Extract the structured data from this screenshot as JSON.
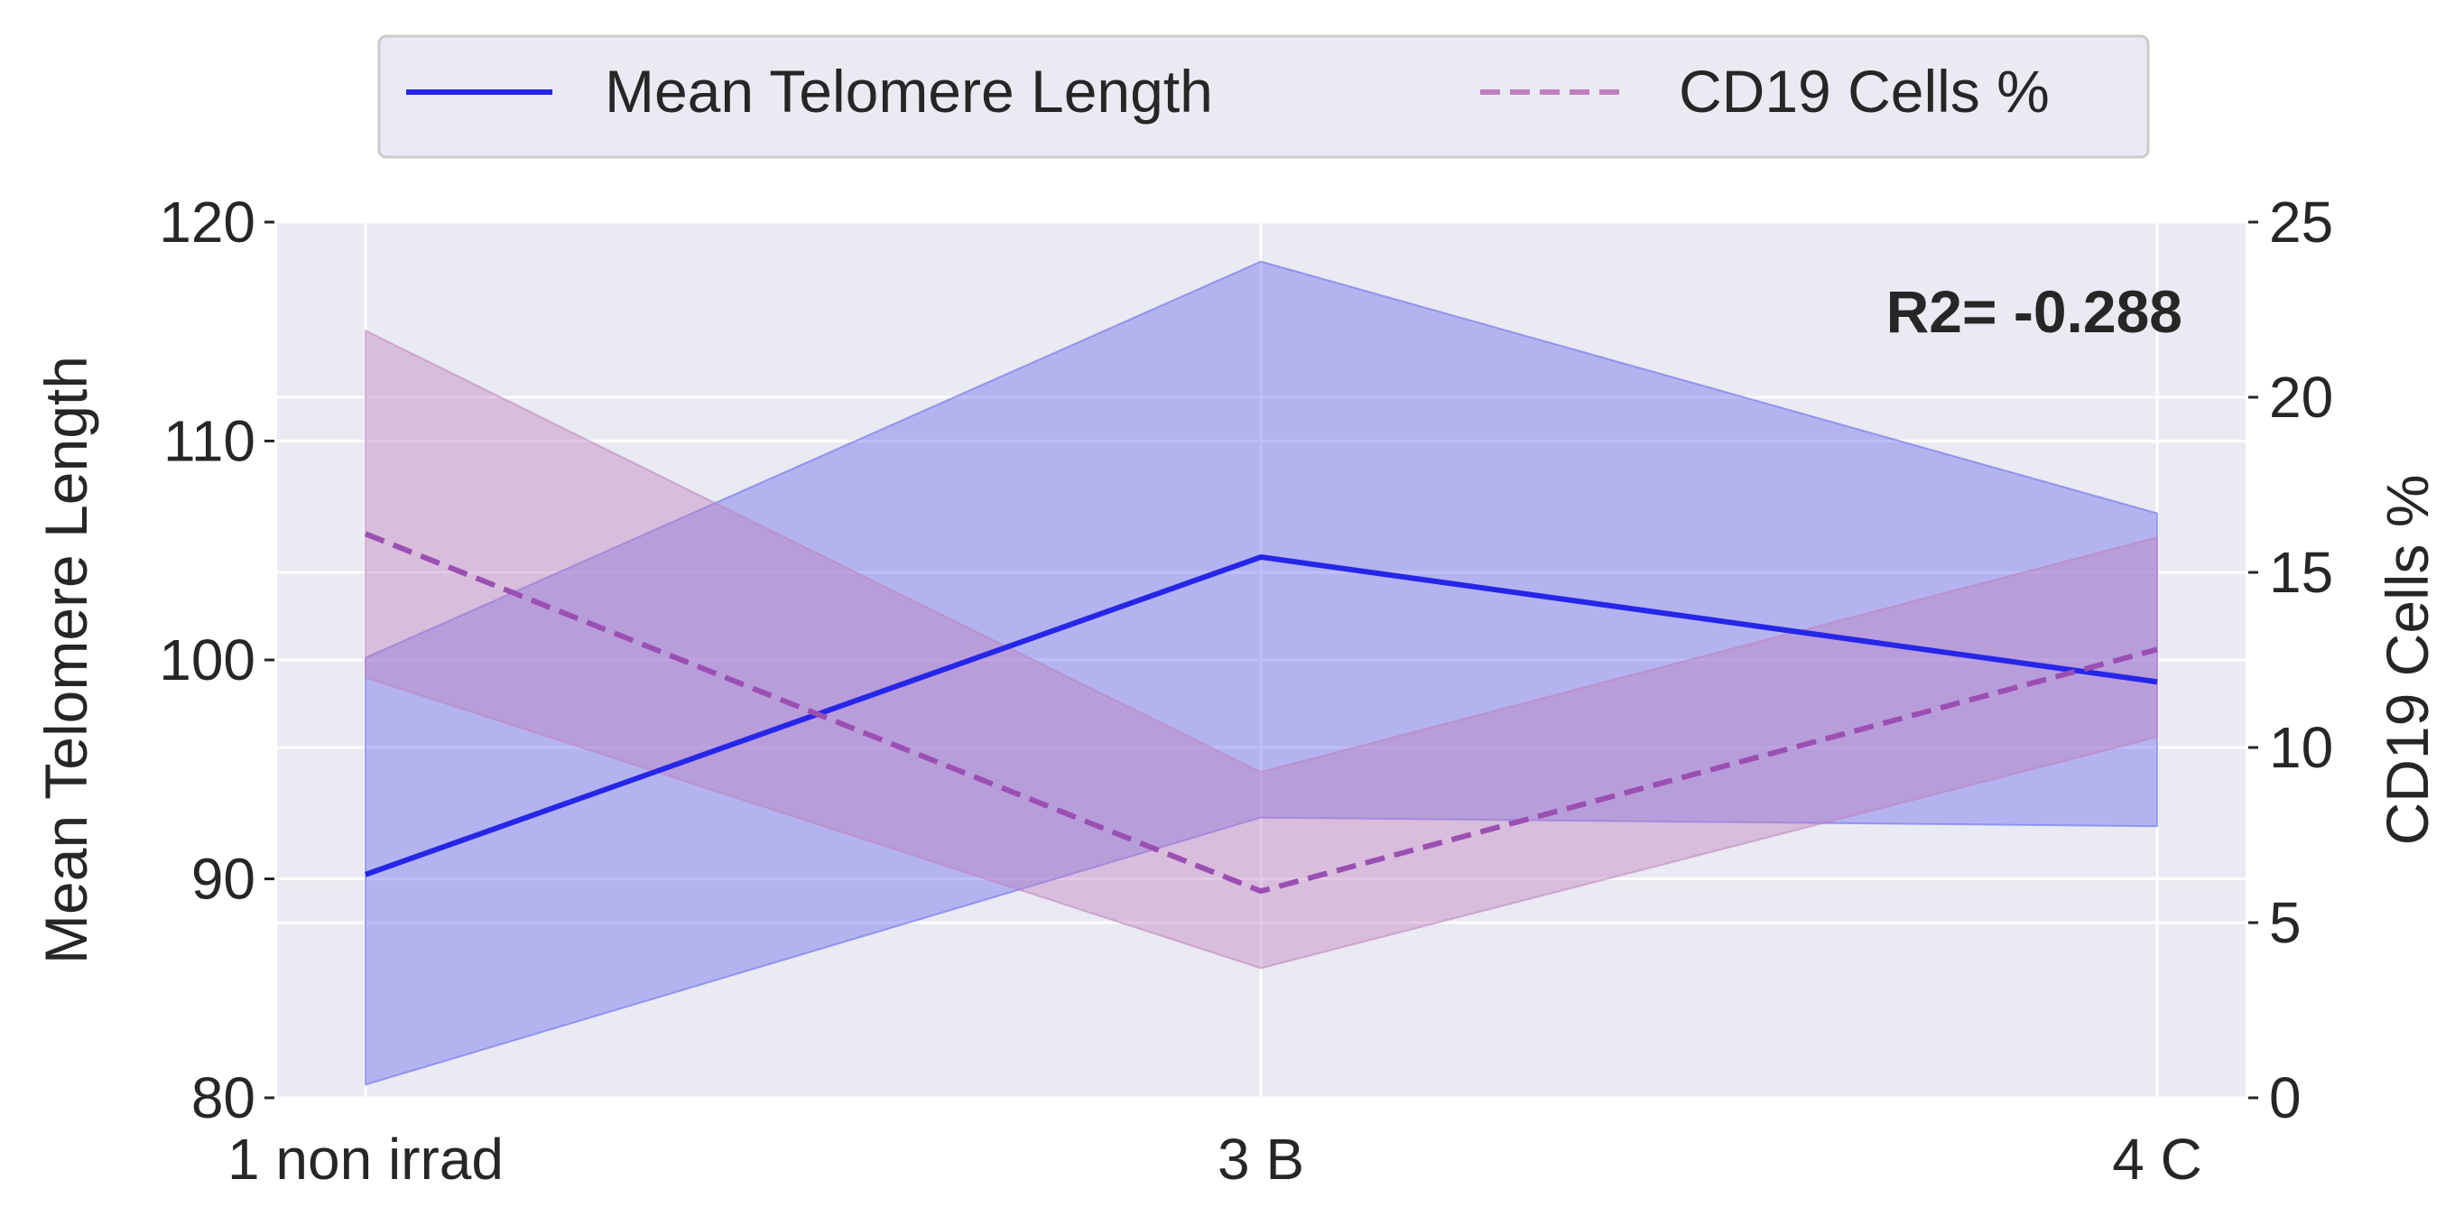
{
  "chart_data": {
    "type": "line",
    "categories": [
      "1 non irrad",
      "3 B",
      "4 C"
    ],
    "series": [
      {
        "name": "Mean Telomere Length",
        "axis": "left",
        "style": "solid",
        "color": "#2626e8",
        "band_color": "#6666ee",
        "values": [
          90.2,
          104.7,
          99.0
        ],
        "band_lower": [
          80.6,
          92.8,
          92.4
        ],
        "band_upper": [
          100.1,
          118.2,
          106.7
        ]
      },
      {
        "name": "CD19 Cells %",
        "axis": "right",
        "style": "dashed",
        "color": "#9b4fb3",
        "legend_color": "#bf7fbf",
        "band_color": "#bf7fbf",
        "values": [
          16.1,
          5.9,
          12.8
        ],
        "band_lower": [
          12.0,
          3.7,
          10.3
        ],
        "band_upper": [
          21.9,
          9.3,
          16.0
        ]
      }
    ],
    "ylabel": "Mean Telomere Length",
    "ylabel_right": "CD19 Cells %",
    "ylim": [
      80,
      120
    ],
    "ylim_right": [
      0,
      25
    ],
    "yticks": [
      80,
      90,
      100,
      110,
      120
    ],
    "yticks_right": [
      0,
      5,
      10,
      15,
      20,
      25
    ],
    "annotation": "R2= -0.288",
    "legend_placement": "top-center",
    "grid": true,
    "background": "#eaeaf2"
  }
}
